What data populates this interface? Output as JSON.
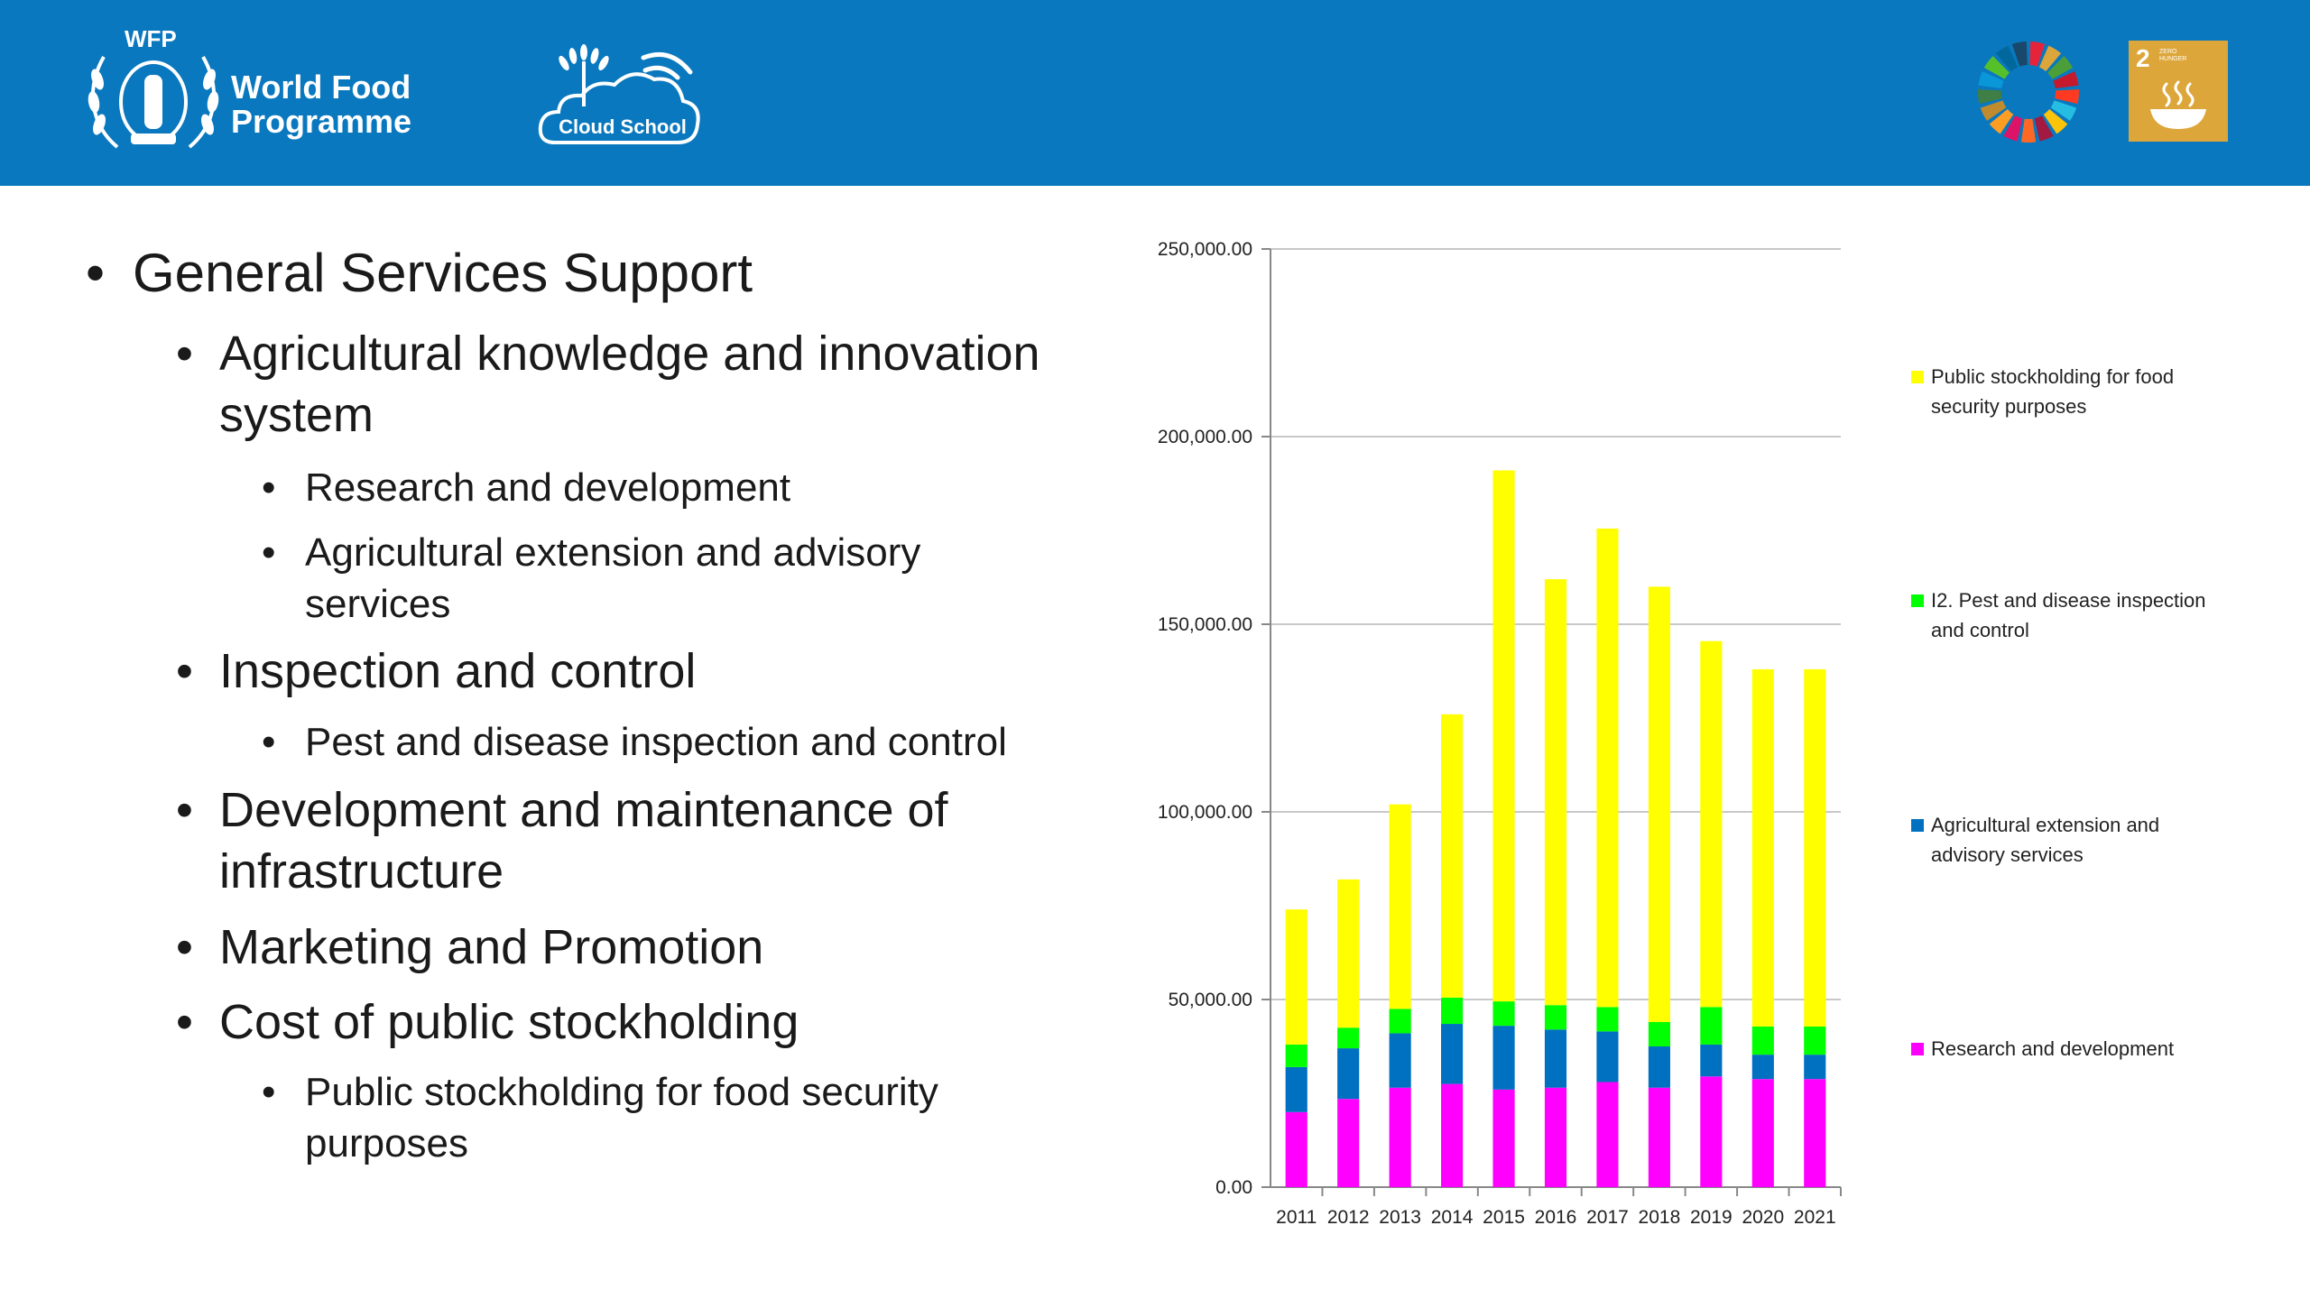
{
  "header": {
    "wfp_abbr": "WFP",
    "wfp_name_line1": "World Food",
    "wfp_name_line2": "Programme",
    "cloud_school": "Cloud School",
    "sdg2_number": "2",
    "sdg2_label": "ZERO HUNGER",
    "bg_color": "#0a78be"
  },
  "bullets": [
    {
      "level": 1,
      "text": "General Services Support"
    },
    {
      "level": 2,
      "text": "Agricultural knowledge and innovation",
      "text2": "system"
    },
    {
      "level": 3,
      "text": "Research and development"
    },
    {
      "level": 3,
      "text": "Agricultural extension and advisory",
      "text2": "services"
    },
    {
      "level": 2,
      "text": "Inspection and control"
    },
    {
      "level": 3,
      "text": "Pest and disease inspection and control"
    },
    {
      "level": 2,
      "text": "Development and maintenance of",
      "text2": "infrastructure"
    },
    {
      "level": 2,
      "text": "Marketing and Promotion"
    },
    {
      "level": 2,
      "text": "Cost of public stockholding"
    },
    {
      "level": 3,
      "text": "Public stockholding for food security",
      "text2": "purposes"
    }
  ],
  "chart_data": {
    "type": "bar",
    "stacked": true,
    "categories": [
      "2011",
      "2012",
      "2013",
      "2014",
      "2015",
      "2016",
      "2017",
      "2018",
      "2019",
      "2020",
      "2021"
    ],
    "series": [
      {
        "name": "Research and development",
        "color": "#ff00ff",
        "values": [
          20000,
          23500,
          26500,
          27500,
          26000,
          26500,
          28000,
          26500,
          29500,
          28800,
          28800
        ]
      },
      {
        "name": "Agricultural extension and advisory services",
        "color": "#0070c0",
        "values": [
          12000,
          13500,
          14500,
          16000,
          17000,
          15500,
          13500,
          11000,
          8500,
          6500,
          6500
        ]
      },
      {
        "name": "I2. Pest and disease inspection and control",
        "color": "#00ff00",
        "values": [
          6000,
          5500,
          6500,
          7000,
          6500,
          6500,
          6500,
          6500,
          10000,
          7500,
          7500
        ]
      },
      {
        "name": "Public stockholding for food security purposes",
        "color": "#ffff00",
        "values": [
          36000,
          39500,
          54500,
          75500,
          141500,
          113500,
          127500,
          116000,
          97500,
          95200,
          95200
        ]
      }
    ],
    "ylim": [
      0,
      250000
    ],
    "yticks": [
      "0.00",
      "50,000.00",
      "100,000.00",
      "150,000.00",
      "200,000.00",
      "250,000.00"
    ],
    "ytick_values": [
      0,
      50000,
      100000,
      150000,
      200000,
      250000
    ],
    "legend_position": "right",
    "legend": [
      {
        "name": "Public stockholding for food",
        "name2": "security purposes",
        "color": "#ffff00"
      },
      {
        "name": "I2. Pest and disease inspection",
        "name2": "and control",
        "color": "#00ff00"
      },
      {
        "name": "Agricultural extension and",
        "name2": "advisory services",
        "color": "#0070c0"
      },
      {
        "name": "Research and development",
        "name2": "",
        "color": "#ff00ff"
      }
    ],
    "grid": true
  }
}
